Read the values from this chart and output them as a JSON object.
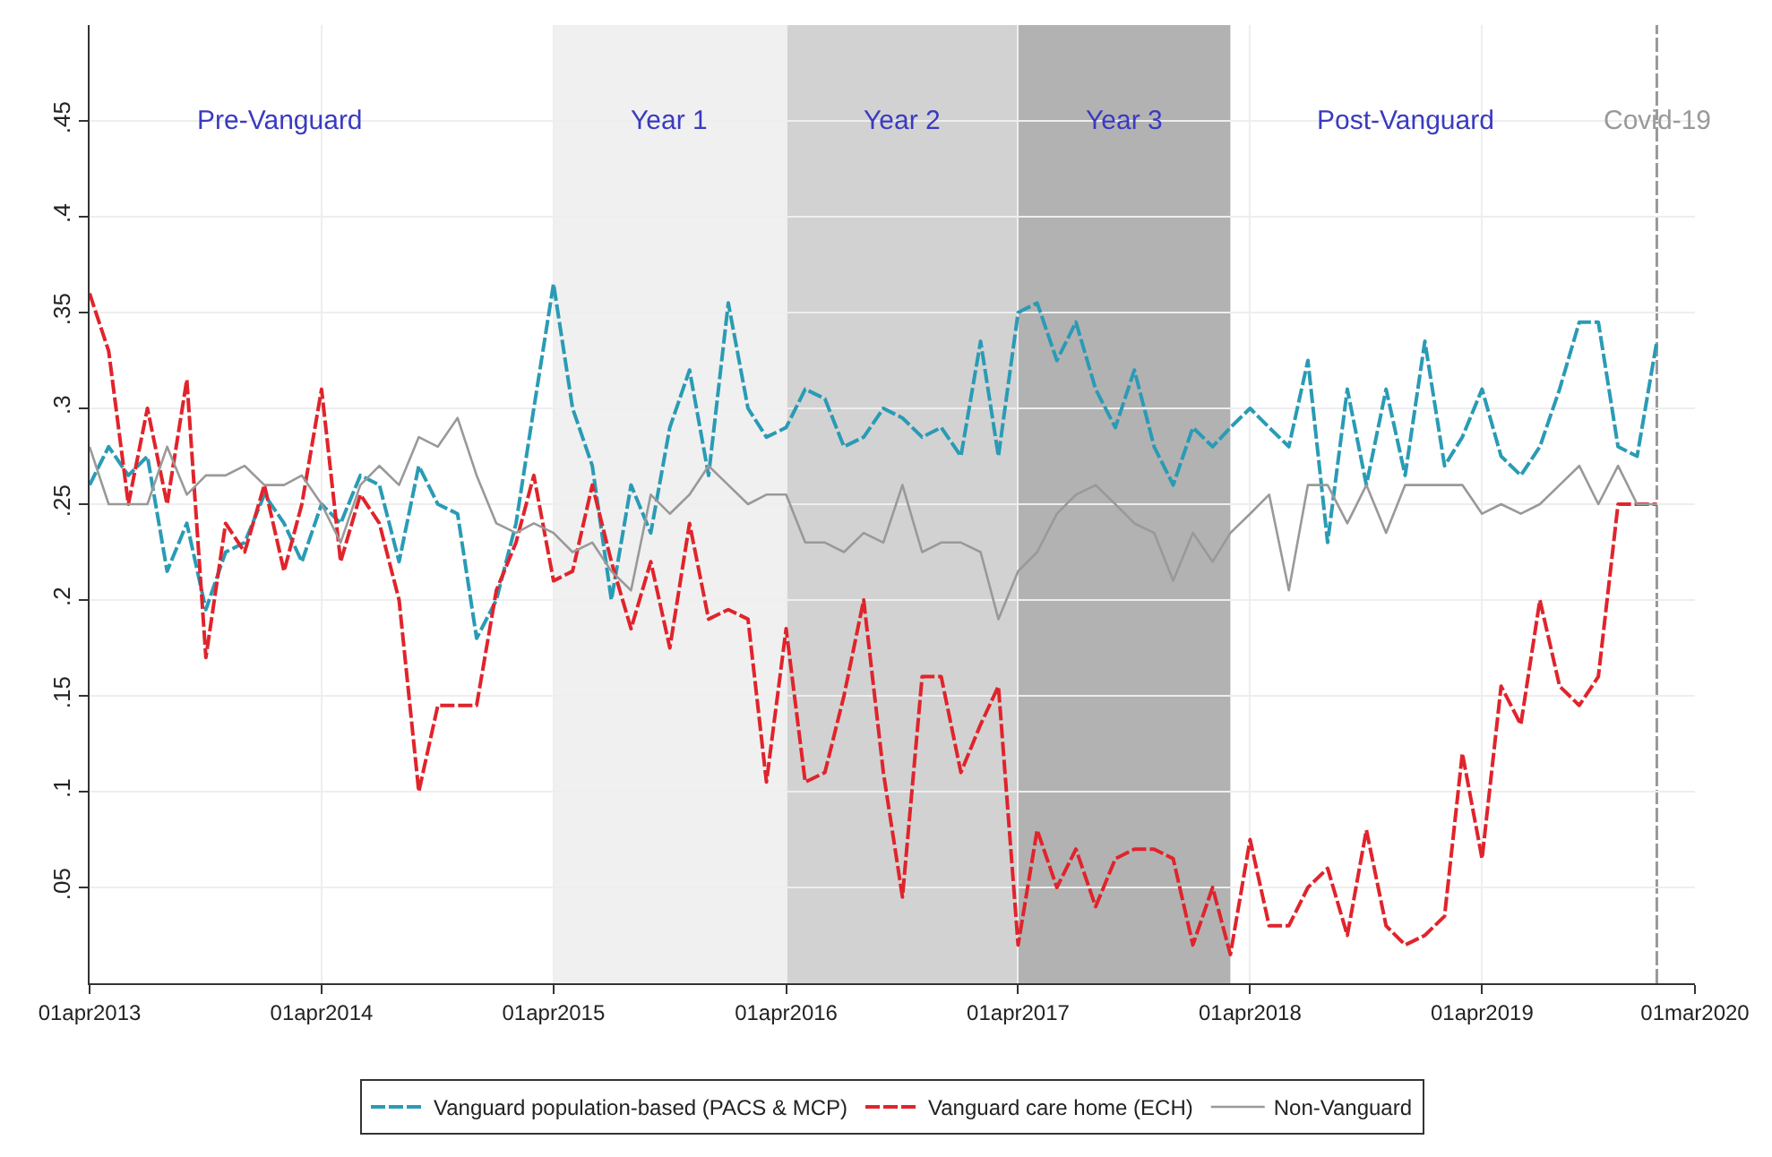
{
  "chart_data": {
    "type": "line",
    "x": [
      "2013-04",
      "2013-05",
      "2013-06",
      "2013-07",
      "2013-08",
      "2013-09",
      "2013-10",
      "2013-11",
      "2013-12",
      "2014-01",
      "2014-02",
      "2014-03",
      "2014-04",
      "2014-05",
      "2014-06",
      "2014-07",
      "2014-08",
      "2014-09",
      "2014-10",
      "2014-11",
      "2014-12",
      "2015-01",
      "2015-02",
      "2015-03",
      "2015-04",
      "2015-05",
      "2015-06",
      "2015-07",
      "2015-08",
      "2015-09",
      "2015-10",
      "2015-11",
      "2015-12",
      "2016-01",
      "2016-02",
      "2016-03",
      "2016-04",
      "2016-05",
      "2016-06",
      "2016-07",
      "2016-08",
      "2016-09",
      "2016-10",
      "2016-11",
      "2016-12",
      "2017-01",
      "2017-02",
      "2017-03",
      "2017-04",
      "2017-05",
      "2017-06",
      "2017-07",
      "2017-08",
      "2017-09",
      "2017-10",
      "2017-11",
      "2017-12",
      "2018-01",
      "2018-02",
      "2018-03",
      "2018-04",
      "2018-05",
      "2018-06",
      "2018-07",
      "2018-08",
      "2018-09",
      "2018-10",
      "2018-11",
      "2018-12",
      "2019-01",
      "2019-02",
      "2019-03",
      "2019-04",
      "2019-05",
      "2019-06",
      "2019-07",
      "2019-08",
      "2019-09",
      "2019-10",
      "2019-11",
      "2019-12",
      "2020-01"
    ],
    "series": [
      {
        "name": "Vanguard population-based (PACS & MCP)",
        "color": "#2a9bb5",
        "line_style": "dashed",
        "values": [
          0.26,
          0.28,
          0.265,
          0.275,
          0.215,
          0.24,
          0.195,
          0.225,
          0.23,
          0.255,
          0.24,
          0.22,
          0.25,
          0.24,
          0.265,
          0.26,
          0.22,
          0.27,
          0.25,
          0.245,
          0.18,
          0.2,
          0.24,
          0.3,
          0.365,
          0.3,
          0.27,
          0.2,
          0.26,
          0.235,
          0.29,
          0.32,
          0.265,
          0.355,
          0.3,
          0.285,
          0.29,
          0.31,
          0.305,
          0.28,
          0.285,
          0.3,
          0.295,
          0.285,
          0.29,
          0.275,
          0.335,
          0.275,
          0.35,
          0.355,
          0.325,
          0.345,
          0.31,
          0.29,
          0.32,
          0.28,
          0.26,
          0.29,
          0.28,
          0.29,
          0.3,
          0.29,
          0.28,
          0.325,
          0.23,
          0.31,
          0.26,
          0.31,
          0.265,
          0.335,
          0.27,
          0.285,
          0.31,
          0.275,
          0.265,
          0.28,
          0.31,
          0.345,
          0.345,
          0.28,
          0.275,
          0.335
        ]
      },
      {
        "name": "Vanguard care home (ECH)",
        "color": "#e0242c",
        "line_style": "dashed",
        "values": [
          0.36,
          0.33,
          0.25,
          0.3,
          0.25,
          0.315,
          0.17,
          0.24,
          0.225,
          0.26,
          0.215,
          0.25,
          0.31,
          0.22,
          0.255,
          0.24,
          0.2,
          0.1,
          0.145,
          0.145,
          0.145,
          0.205,
          0.23,
          0.265,
          0.21,
          0.215,
          0.26,
          0.22,
          0.185,
          0.22,
          0.175,
          0.24,
          0.19,
          0.195,
          0.19,
          0.105,
          0.185,
          0.105,
          0.11,
          0.15,
          0.2,
          0.11,
          0.045,
          0.16,
          0.16,
          0.11,
          0.135,
          0.155,
          0.02,
          0.08,
          0.05,
          0.07,
          0.04,
          0.065,
          0.07,
          0.07,
          0.065,
          0.02,
          0.05,
          0.015,
          0.075,
          0.03,
          0.03,
          0.05,
          0.06,
          0.025,
          0.08,
          0.03,
          0.02,
          0.025,
          0.035,
          0.12,
          0.065,
          0.155,
          0.135,
          0.2,
          0.155,
          0.145,
          0.16,
          0.25,
          0.25,
          0.25
        ]
      },
      {
        "name": "Non-Vanguard",
        "color": "#999999",
        "line_style": "solid",
        "values": [
          0.28,
          0.25,
          0.25,
          0.25,
          0.28,
          0.255,
          0.265,
          0.265,
          0.27,
          0.26,
          0.26,
          0.265,
          0.25,
          0.23,
          0.26,
          0.27,
          0.26,
          0.285,
          0.28,
          0.295,
          0.265,
          0.24,
          0.235,
          0.24,
          0.235,
          0.225,
          0.23,
          0.215,
          0.205,
          0.255,
          0.245,
          0.255,
          0.27,
          0.26,
          0.25,
          0.255,
          0.255,
          0.23,
          0.23,
          0.225,
          0.235,
          0.23,
          0.26,
          0.225,
          0.23,
          0.23,
          0.225,
          0.19,
          0.215,
          0.225,
          0.245,
          0.255,
          0.26,
          0.25,
          0.24,
          0.235,
          0.21,
          0.235,
          0.22,
          0.235,
          0.245,
          0.255,
          0.205,
          0.26,
          0.26,
          0.24,
          0.26,
          0.235,
          0.26,
          0.26,
          0.26,
          0.26,
          0.245,
          0.25,
          0.245,
          0.25,
          0.26,
          0.27,
          0.25,
          0.27,
          0.25,
          0.25
        ]
      }
    ],
    "xlim": [
      "2013-04-01",
      "2020-03-01"
    ],
    "xticks": [
      {
        "value": "2013-04-01",
        "label": "01apr2013"
      },
      {
        "value": "2014-04-01",
        "label": "01apr2014"
      },
      {
        "value": "2015-04-01",
        "label": "01apr2015"
      },
      {
        "value": "2016-04-01",
        "label": "01apr2016"
      },
      {
        "value": "2017-04-01",
        "label": "01apr2017"
      },
      {
        "value": "2018-04-01",
        "label": "01apr2018"
      },
      {
        "value": "2019-04-01",
        "label": "01apr2019"
      },
      {
        "value": "2020-03-01",
        "label": "01mar2020"
      }
    ],
    "ylim": [
      0,
      0.5
    ],
    "yticks": [
      {
        "value": 0.05,
        "label": ".05"
      },
      {
        "value": 0.1,
        "label": ".1"
      },
      {
        "value": 0.15,
        "label": ".15"
      },
      {
        "value": 0.2,
        "label": ".2"
      },
      {
        "value": 0.25,
        "label": ".25"
      },
      {
        "value": 0.3,
        "label": ".3"
      },
      {
        "value": 0.35,
        "label": ".35"
      },
      {
        "value": 0.4,
        "label": ".4"
      },
      {
        "value": 0.45,
        "label": ".45"
      }
    ],
    "bands": [
      {
        "axis": "x",
        "from": "2015-04-01",
        "to": "2016-04-01",
        "label": "Year 1",
        "color": "#f0f0f0"
      },
      {
        "axis": "x",
        "from": "2016-04-01",
        "to": "2017-04-01",
        "label": "Year 2",
        "color": "#d2d2d2"
      },
      {
        "axis": "x",
        "from": "2017-04-01",
        "to": "2018-03-01",
        "label": "Year 3",
        "color": "#b2b2b2"
      }
    ],
    "ref_lines": [
      {
        "axis": "x",
        "value": "2020-01-01",
        "label": "Covid-19",
        "color": "#999999",
        "line_style": "dashed"
      }
    ],
    "annotations": [
      "Pre-Vanguard",
      "Post-Vanguard"
    ],
    "grid": true,
    "legend": "bottom",
    "marker": "none"
  }
}
